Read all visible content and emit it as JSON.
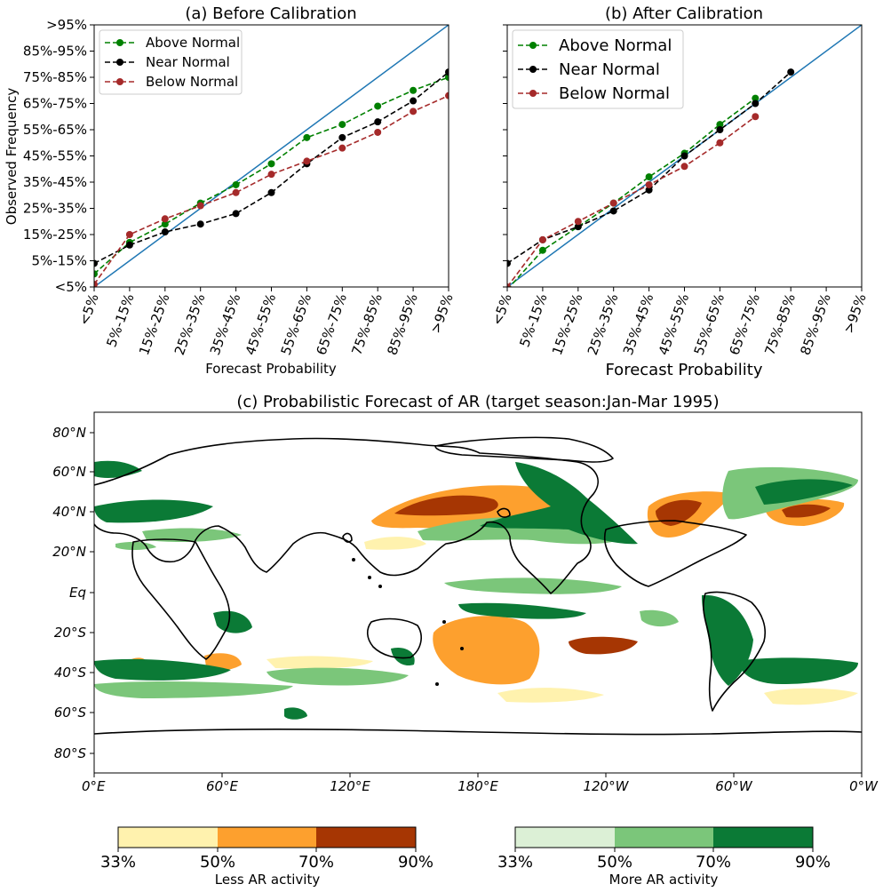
{
  "panel_a": {
    "title": "(a) Before Calibration",
    "xlabel": "Forecast Probability",
    "ylabel": "Observed Frequency"
  },
  "panel_b": {
    "title": "(b) After Calibration",
    "xlabel": "Forecast Probability"
  },
  "panel_c": {
    "title": "(c) Probabilistic Forecast of AR (target season:Jan-Mar 1995)",
    "lat_ticks": [
      "80°N",
      "60°N",
      "40°N",
      "20°N",
      "Eq",
      "20°S",
      "40°S",
      "60°S",
      "80°S"
    ],
    "lon_ticks": [
      "0°E",
      "60°E",
      "120°E",
      "180°E",
      "120°W",
      "60°W",
      "0°W"
    ],
    "colorbar_less": {
      "label": "Less AR activity",
      "ticks": [
        "33%",
        "50%",
        "70%",
        "90%"
      ],
      "colors": [
        "#fff2ae",
        "#fda02e",
        "#a63603"
      ]
    },
    "colorbar_more": {
      "label": "More AR activity",
      "ticks": [
        "33%",
        "50%",
        "70%",
        "90%"
      ],
      "colors": [
        "#dcf0d6",
        "#7bc67a",
        "#0b7a36"
      ]
    }
  },
  "chart_data": [
    {
      "type": "line",
      "title": "(a) Before Calibration",
      "xlabel": "Forecast Probability",
      "ylabel": "Observed Frequency",
      "categories": [
        "<5%",
        "5%-15%",
        "15%-25%",
        "25%-35%",
        "35%-45%",
        "45%-55%",
        "55%-65%",
        "65%-75%",
        "75%-85%",
        "85%-95%",
        ">95%"
      ],
      "y_tick_labels": [
        "<5%",
        "5%-15%",
        "15%-25%",
        "25%-35%",
        "35%-45%",
        "45%-55%",
        "55%-65%",
        "65%-75%",
        "75%-85%",
        "85%-95%",
        ">95%"
      ],
      "ylim": [
        0,
        10
      ],
      "legend_position": "top-left",
      "reference_line": {
        "from": [
          0,
          0
        ],
        "to": [
          10,
          10
        ],
        "color": "#1f77b4"
      },
      "series": [
        {
          "name": "Above Normal",
          "color": "#008000",
          "values": [
            0.5,
            1.7,
            2.4,
            3.2,
            3.9,
            4.7,
            5.7,
            6.2,
            6.9,
            7.5,
            8.0
          ]
        },
        {
          "name": "Near Normal",
          "color": "#000000",
          "values": [
            0.9,
            1.6,
            2.1,
            2.4,
            2.8,
            3.6,
            4.7,
            5.7,
            6.3,
            7.1,
            8.2
          ]
        },
        {
          "name": "Below Normal",
          "color": "#a52a2a",
          "values": [
            0.1,
            2.0,
            2.6,
            3.1,
            3.6,
            4.3,
            4.8,
            5.3,
            5.9,
            6.7,
            7.3
          ]
        }
      ]
    },
    {
      "type": "line",
      "title": "(b) After Calibration",
      "xlabel": "Forecast Probability",
      "categories": [
        "<5%",
        "5%-15%",
        "15%-25%",
        "25%-35%",
        "35%-45%",
        "45%-55%",
        "55%-65%",
        "65%-75%",
        "75%-85%",
        "85%-95%",
        ">95%"
      ],
      "ylim": [
        0,
        10
      ],
      "legend_position": "top-left",
      "reference_line": {
        "from": [
          0,
          0
        ],
        "to": [
          10,
          10
        ],
        "color": "#1f77b4"
      },
      "series": [
        {
          "name": "Above Normal",
          "color": "#008000",
          "values": [
            -0.1,
            1.4,
            2.3,
            3.2,
            4.2,
            5.1,
            6.2,
            7.2,
            null,
            null,
            null
          ]
        },
        {
          "name": "Near Normal",
          "color": "#000000",
          "values": [
            0.9,
            1.8,
            2.3,
            2.9,
            3.7,
            5.0,
            6.0,
            7.0,
            8.2,
            null,
            null
          ]
        },
        {
          "name": "Below Normal",
          "color": "#a52a2a",
          "values": [
            0.0,
            1.8,
            2.5,
            3.2,
            3.9,
            4.6,
            5.5,
            6.5,
            null,
            null,
            null
          ]
        }
      ]
    }
  ]
}
